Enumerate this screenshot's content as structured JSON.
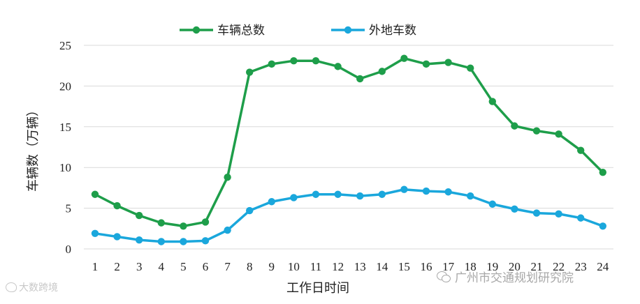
{
  "chart_data": {
    "type": "line",
    "x": [
      "1",
      "2",
      "3",
      "4",
      "5",
      "6",
      "7",
      "8",
      "9",
      "10",
      "11",
      "12",
      "13",
      "14",
      "15",
      "16",
      "17",
      "18",
      "19",
      "20",
      "21",
      "22",
      "23",
      "24"
    ],
    "series": [
      {
        "name": "车辆总数",
        "color": "#1e9e4a",
        "values": [
          6.7,
          5.3,
          4.1,
          3.2,
          2.8,
          3.3,
          8.8,
          21.7,
          22.7,
          23.1,
          23.1,
          22.4,
          20.9,
          21.8,
          23.4,
          22.7,
          22.9,
          22.2,
          18.1,
          15.1,
          14.5,
          14.1,
          12.1,
          9.4
        ]
      },
      {
        "name": "外地车数",
        "color": "#1aa7dc",
        "values": [
          1.9,
          1.5,
          1.1,
          0.9,
          0.9,
          1.0,
          2.3,
          4.7,
          5.8,
          6.3,
          6.7,
          6.7,
          6.5,
          6.7,
          7.3,
          7.1,
          7.0,
          6.5,
          5.5,
          4.9,
          4.4,
          4.3,
          3.8,
          2.8
        ]
      }
    ],
    "y_ticks": [
      "0",
      "5",
      "10",
      "15",
      "20",
      "25"
    ],
    "ylim": [
      0,
      25
    ],
    "xlabel": "工作日时间",
    "ylabel": "车辆数（万辆）",
    "grid": true,
    "legend_position": "top-center"
  },
  "watermarks": {
    "left": "大数跨境",
    "right": "广州市交通规划研究院"
  }
}
